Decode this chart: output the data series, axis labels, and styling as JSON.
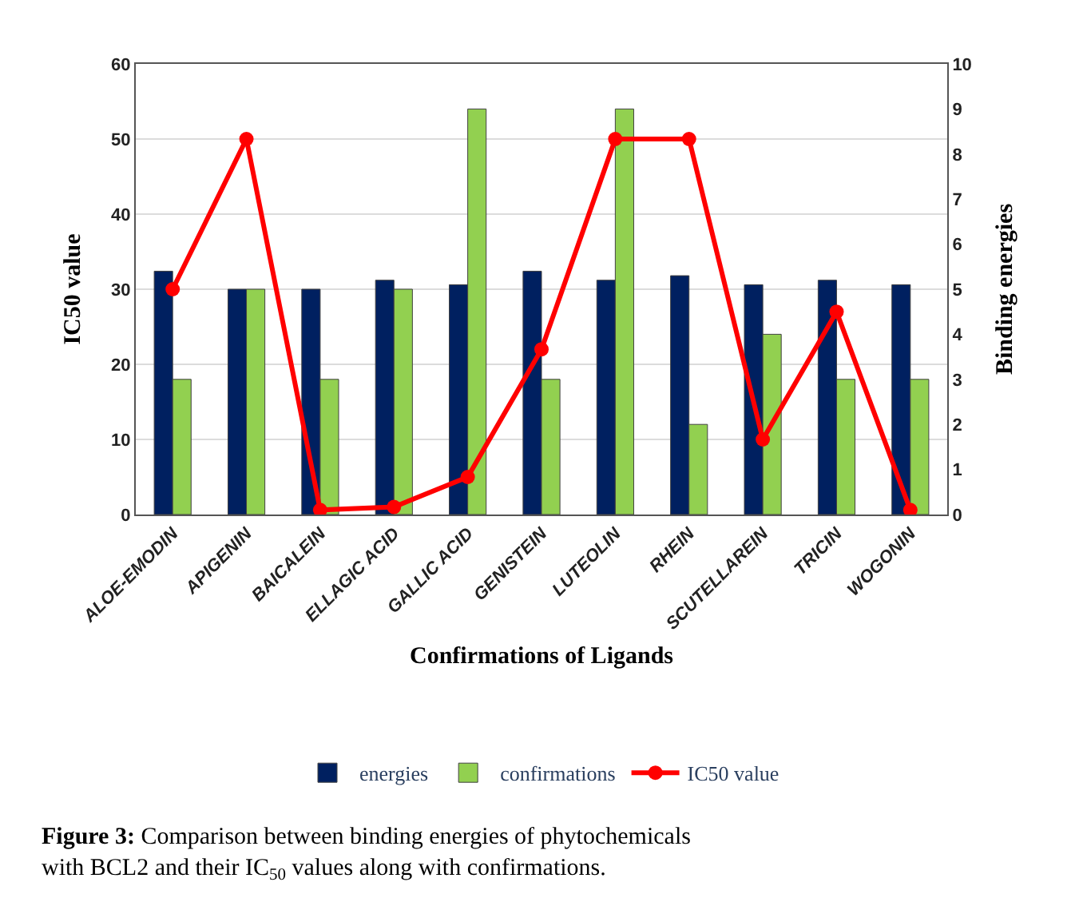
{
  "chart_data": {
    "type": "bar",
    "xlabel": "Confirmations of Ligands",
    "ylabel": "IC50 value",
    "y2label": "Binding energies",
    "categories": [
      "ALOE-EMODIN",
      "APIGENIN",
      "BAICALEIN",
      "ELLAGIC ACID",
      "GALLIC ACID",
      "GENISTEIN",
      "LUTEOLIN",
      "RHEIN",
      "SCUTELLAREIN",
      "TRICIN",
      "WOGONIN"
    ],
    "series": [
      {
        "name": "energies",
        "axis": "y2",
        "color": "#002060",
        "values": [
          5.4,
          5.0,
          5.0,
          5.2,
          5.1,
          5.4,
          5.2,
          5.3,
          5.1,
          5.2,
          5.1
        ]
      },
      {
        "name": "confirmations",
        "axis": "y2",
        "color": "#92d050",
        "values": [
          3,
          5,
          3,
          5,
          9,
          3,
          9,
          2,
          4,
          3,
          3
        ]
      },
      {
        "name": "IC50 value",
        "type": "line",
        "color": "#ff0000",
        "marker": "circle",
        "values": [
          30,
          50,
          0.6,
          1,
          5,
          22,
          50,
          50,
          10,
          27,
          0.6
        ]
      }
    ],
    "ylim": [
      0,
      60
    ],
    "yticks": [
      0,
      10,
      20,
      30,
      40,
      50,
      60
    ],
    "y2lim": [
      0,
      10
    ],
    "y2ticks": [
      0,
      1,
      2,
      3,
      4,
      5,
      6,
      7,
      8,
      9,
      10
    ],
    "grid": "y",
    "legend": "bottom",
    "annotations": [
      "Figure 3: Comparison between binding energies of phytochemicals with BCL2 and their IC$_{50}$ values along with confirmations."
    ]
  }
}
